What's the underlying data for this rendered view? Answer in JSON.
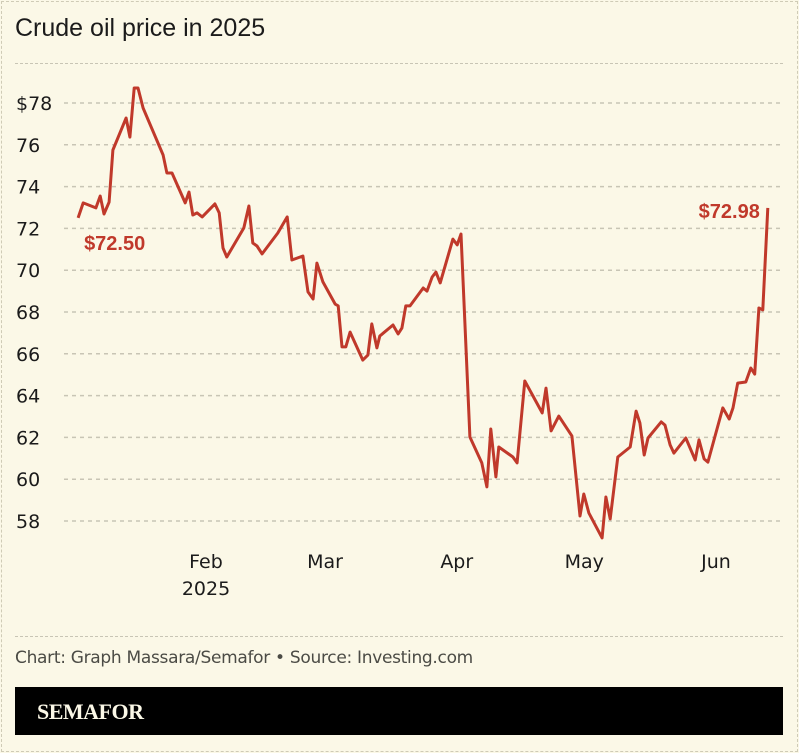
{
  "title": "Crude oil price in 2025",
  "credit": "Chart: Graph Massara/Semafor • Source: Investing.com",
  "brand": "SEMAFOR",
  "colors": {
    "line": "#c0392b",
    "background": "#fbf8e7",
    "grid": "#c8c5b5"
  },
  "chart_data": {
    "type": "line",
    "title": "Crude oil price in 2025",
    "xlabel": "",
    "ylabel": "",
    "x_unit": "day of year 2025 (0 = Jan 1)",
    "xlim": [
      0,
      166
    ],
    "ylim": [
      57,
      79
    ],
    "grid": true,
    "y_ticks": [
      {
        "v": 78,
        "label": "$78"
      },
      {
        "v": 76,
        "label": "76"
      },
      {
        "v": 74,
        "label": "74"
      },
      {
        "v": 72,
        "label": "72"
      },
      {
        "v": 70,
        "label": "70"
      },
      {
        "v": 68,
        "label": "68"
      },
      {
        "v": 66,
        "label": "66"
      },
      {
        "v": 64,
        "label": "64"
      },
      {
        "v": 62,
        "label": "62"
      },
      {
        "v": 60,
        "label": "60"
      },
      {
        "v": 58,
        "label": "58"
      }
    ],
    "x_ticks": [
      {
        "d": 31,
        "label": "Feb",
        "sub": "2025"
      },
      {
        "d": 59,
        "label": "Mar",
        "sub": ""
      },
      {
        "d": 90,
        "label": "Apr",
        "sub": ""
      },
      {
        "d": 120,
        "label": "May",
        "sub": ""
      },
      {
        "d": 151,
        "label": "Jun",
        "sub": ""
      }
    ],
    "annotations": [
      {
        "label": "$72.50",
        "d": 0.9,
        "v": 72.5,
        "pos": "below-right"
      },
      {
        "label": "$72.98",
        "d": 163.2,
        "v": 72.98,
        "pos": "left"
      }
    ],
    "series": [
      {
        "name": "Crude oil price",
        "points": [
          [
            0.9,
            72.5
          ],
          [
            2.1,
            73.22
          ],
          [
            5.1,
            72.98
          ],
          [
            6.1,
            73.55
          ],
          [
            7.0,
            72.69
          ],
          [
            8.2,
            73.26
          ],
          [
            9.1,
            75.75
          ],
          [
            12.2,
            77.28
          ],
          [
            13.1,
            76.37
          ],
          [
            14.1,
            78.72
          ],
          [
            15.0,
            78.72
          ],
          [
            16.2,
            77.76
          ],
          [
            20.9,
            75.51
          ],
          [
            21.8,
            74.65
          ],
          [
            23.0,
            74.65
          ],
          [
            26.1,
            73.22
          ],
          [
            27.0,
            73.74
          ],
          [
            27.9,
            72.64
          ],
          [
            28.9,
            72.74
          ],
          [
            30.1,
            72.55
          ],
          [
            33.1,
            73.17
          ],
          [
            34.1,
            72.74
          ],
          [
            35.0,
            71.06
          ],
          [
            35.9,
            70.63
          ],
          [
            39.9,
            72.02
          ],
          [
            41.1,
            73.07
          ],
          [
            42.0,
            71.3
          ],
          [
            43.0,
            71.16
          ],
          [
            44.2,
            70.78
          ],
          [
            47.9,
            71.78
          ],
          [
            50.1,
            72.55
          ],
          [
            51.2,
            70.49
          ],
          [
            53.8,
            70.68
          ],
          [
            55.0,
            68.96
          ],
          [
            56.2,
            68.62
          ],
          [
            57.1,
            70.34
          ],
          [
            58.5,
            69.44
          ],
          [
            61.4,
            68.38
          ],
          [
            62.1,
            68.29
          ],
          [
            63.0,
            66.33
          ],
          [
            63.9,
            66.33
          ],
          [
            64.9,
            67.04
          ],
          [
            67.9,
            65.7
          ],
          [
            69.1,
            65.94
          ],
          [
            70.0,
            67.43
          ],
          [
            71.2,
            66.28
          ],
          [
            71.9,
            66.85
          ],
          [
            75.0,
            67.38
          ],
          [
            76.2,
            66.95
          ],
          [
            77.1,
            67.23
          ],
          [
            78.0,
            68.29
          ],
          [
            79.0,
            68.29
          ],
          [
            82.1,
            69.15
          ],
          [
            83.0,
            69.0
          ],
          [
            84.2,
            69.67
          ],
          [
            85.1,
            69.91
          ],
          [
            86.1,
            69.39
          ],
          [
            89.1,
            71.49
          ],
          [
            90.1,
            71.21
          ],
          [
            91.0,
            71.73
          ],
          [
            93.1,
            62.02
          ],
          [
            95.9,
            60.78
          ],
          [
            97.1,
            59.63
          ],
          [
            98.0,
            62.4
          ],
          [
            99.2,
            60.11
          ],
          [
            99.9,
            61.54
          ],
          [
            103.2,
            61.06
          ],
          [
            104.2,
            60.78
          ],
          [
            106.0,
            64.7
          ],
          [
            110.1,
            63.17
          ],
          [
            111.0,
            64.36
          ],
          [
            112.2,
            62.31
          ],
          [
            114.0,
            63.02
          ],
          [
            117.1,
            62.07
          ],
          [
            119.0,
            58.24
          ],
          [
            119.9,
            59.29
          ],
          [
            121.1,
            58.38
          ],
          [
            124.2,
            57.19
          ],
          [
            125.1,
            59.15
          ],
          [
            126.1,
            58.1
          ],
          [
            127.9,
            61.06
          ],
          [
            130.8,
            61.54
          ],
          [
            132.2,
            63.26
          ],
          [
            133.1,
            62.69
          ],
          [
            134.1,
            61.16
          ],
          [
            135.0,
            61.97
          ],
          [
            138.1,
            62.74
          ],
          [
            139.0,
            62.59
          ],
          [
            140.2,
            61.64
          ],
          [
            141.1,
            61.25
          ],
          [
            143.9,
            61.97
          ],
          [
            146.1,
            60.92
          ],
          [
            147.0,
            61.88
          ],
          [
            148.2,
            60.97
          ],
          [
            149.1,
            60.82
          ],
          [
            152.6,
            63.41
          ],
          [
            154.1,
            62.88
          ],
          [
            155.0,
            63.41
          ],
          [
            156.1,
            64.6
          ],
          [
            158.0,
            64.65
          ],
          [
            159.2,
            65.32
          ],
          [
            160.1,
            65.03
          ],
          [
            161.1,
            68.19
          ],
          [
            162.0,
            68.1
          ],
          [
            163.2,
            72.98
          ]
        ]
      }
    ]
  }
}
